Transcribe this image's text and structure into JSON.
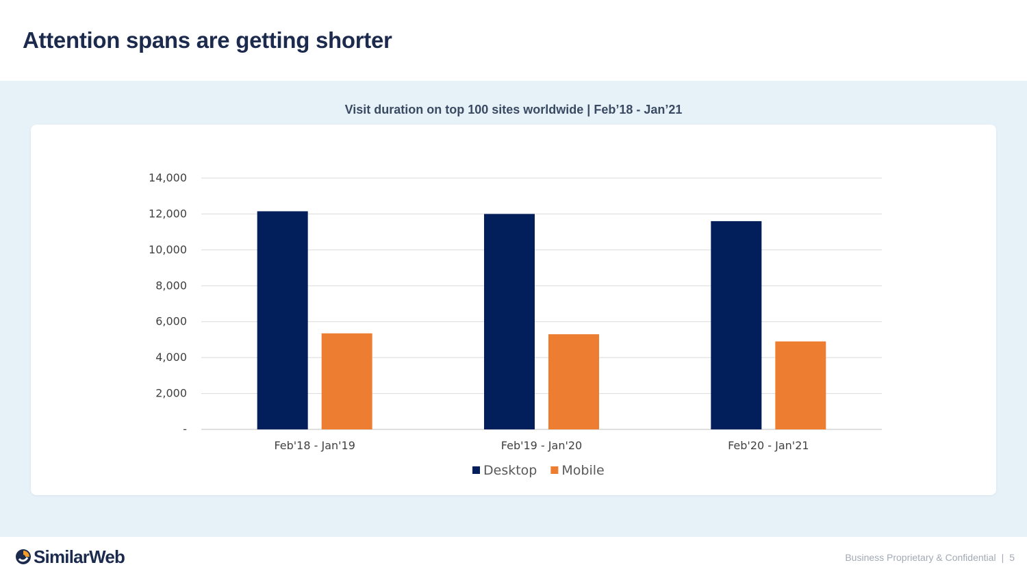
{
  "slide": {
    "title": "Attention spans are getting shorter"
  },
  "footer": {
    "brand": "SimilarWeb",
    "note": "Business Proprietary & Confidential",
    "separator": "|",
    "page_number": "5"
  },
  "colors": {
    "desktop": "#021f5c",
    "mobile": "#ed7d31",
    "band": "#e7f1f8",
    "title": "#1c2b4d"
  },
  "chart_data": {
    "type": "bar",
    "title": "Visit duration on top 100 sites worldwide |  Feb’18 - Jan’21",
    "categories": [
      "Feb'18 - Jan'19",
      "Feb'19 - Jan'20",
      "Feb'20 - Jan'21"
    ],
    "series": [
      {
        "name": "Desktop",
        "values": [
          12150,
          12000,
          11600
        ]
      },
      {
        "name": "Mobile",
        "values": [
          5350,
          5300,
          4900
        ]
      }
    ],
    "ylim": [
      0,
      14000
    ],
    "yticks": [
      0,
      2000,
      4000,
      6000,
      8000,
      10000,
      12000,
      14000
    ],
    "ytick_labels": [
      "-",
      "2,000",
      "4,000",
      "6,000",
      "8,000",
      "10,000",
      "12,000",
      "14,000"
    ],
    "xlabel": "",
    "ylabel": "",
    "grid": true,
    "legend": "bottom-center"
  }
}
